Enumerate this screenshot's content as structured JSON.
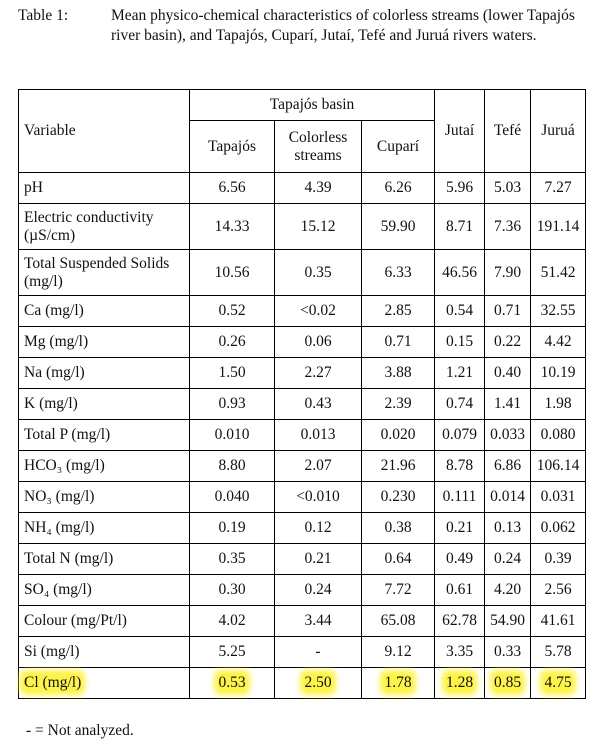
{
  "caption": {
    "label": "Table 1:",
    "text": "Mean physico-chemical characteristics of colorless streams (lower Tapajós river basin), and Tapajós, Cuparí, Jutaí, Tefé and Juruá rivers waters."
  },
  "table": {
    "group_header": "Tapajós basin",
    "variable_header": "Variable",
    "columns": [
      "Tapajós",
      "Colorless streams",
      "Cuparí",
      "Jutaí",
      "Tefé",
      "Juruá"
    ],
    "rows": [
      {
        "variable": "pH",
        "values": [
          "6.56",
          "4.39",
          "6.26",
          "5.96",
          "5.03",
          "7.27"
        ]
      },
      {
        "variable": "Electric conductivity (µS/cm)",
        "values": [
          "14.33",
          "15.12",
          "59.90",
          "8.71",
          "7.36",
          "191.14"
        ]
      },
      {
        "variable": "Total Suspended Solids (mg/l)",
        "values": [
          "10.56",
          "0.35",
          "6.33",
          "46.56",
          "7.90",
          "51.42"
        ]
      },
      {
        "variable": "Ca (mg/l)",
        "values": [
          "0.52",
          "<0.02",
          "2.85",
          "0.54",
          "0.71",
          "32.55"
        ]
      },
      {
        "variable": "Mg (mg/l)",
        "values": [
          "0.26",
          "0.06",
          "0.71",
          "0.15",
          "0.22",
          "4.42"
        ]
      },
      {
        "variable": "Na (mg/l)",
        "values": [
          "1.50",
          "2.27",
          "3.88",
          "1.21",
          "0.40",
          "10.19"
        ]
      },
      {
        "variable": "K (mg/l)",
        "values": [
          "0.93",
          "0.43",
          "2.39",
          "0.74",
          "1.41",
          "1.98"
        ]
      },
      {
        "variable": "Total P (mg/l)",
        "values": [
          "0.010",
          "0.013",
          "0.020",
          "0.079",
          "0.033",
          "0.080"
        ]
      },
      {
        "variable": "HCO₃ (mg/l)",
        "values": [
          "8.80",
          "2.07",
          "21.96",
          "8.78",
          "6.86",
          "106.14"
        ]
      },
      {
        "variable": "NO₃ (mg/l)",
        "values": [
          "0.040",
          "<0.010",
          "0.230",
          "0.111",
          "0.014",
          "0.031"
        ]
      },
      {
        "variable": "NH₄ (mg/l)",
        "values": [
          "0.19",
          "0.12",
          "0.38",
          "0.21",
          "0.13",
          "0.062"
        ]
      },
      {
        "variable": "Total N (mg/l)",
        "values": [
          "0.35",
          "0.21",
          "0.64",
          "0.49",
          "0.24",
          "0.39"
        ]
      },
      {
        "variable": "SO₄ (mg/l)",
        "values": [
          "0.30",
          "0.24",
          "7.72",
          "0.61",
          "4.20",
          "2.56"
        ]
      },
      {
        "variable": "Colour (mg/Pt/l)",
        "values": [
          "4.02",
          "3.44",
          "65.08",
          "62.78",
          "54.90",
          "41.61"
        ]
      },
      {
        "variable": "Si (mg/l)",
        "values": [
          "5.25",
          "-",
          "9.12",
          "3.35",
          "0.33",
          "5.78"
        ]
      },
      {
        "variable": "Cl (mg/l)",
        "values": [
          "0.53",
          "2.50",
          "1.78",
          "1.28",
          "0.85",
          "4.75"
        ]
      }
    ],
    "highlighted_row": 15,
    "highlight_color": "#fdf34a"
  },
  "footnote": "- = Not analyzed."
}
